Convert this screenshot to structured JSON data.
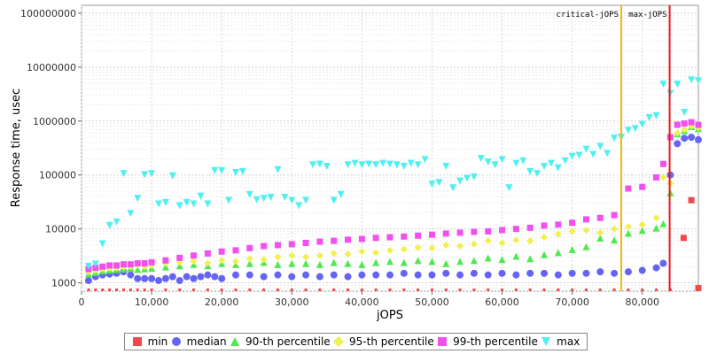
{
  "chart_data": {
    "type": "scatter",
    "xlabel": "jOPS",
    "ylabel": "Response time, usec",
    "xlim": [
      0,
      88000
    ],
    "ylim": [
      700,
      140000000
    ],
    "y_scale": "log",
    "grid": true,
    "x_ticks": [
      0,
      10000,
      20000,
      30000,
      40000,
      50000,
      60000,
      70000,
      80000
    ],
    "x_tick_labels": [
      "0",
      "10,000",
      "20,000",
      "30,000",
      "40,000",
      "50,000",
      "60,000",
      "70,000",
      "80,000"
    ],
    "y_ticks": [
      1000,
      10000,
      100000,
      1000000,
      10000000,
      100000000
    ],
    "y_tick_labels": [
      "1000",
      "10000",
      "100000",
      "1000000",
      "10000000",
      "100000000"
    ],
    "legend_position": "bottom",
    "markers": [
      {
        "label": "critical-jOPS",
        "x": 77000,
        "color": "#f5b800"
      },
      {
        "label": "max-jOPS",
        "x": 83900,
        "color": "#e8191d"
      }
    ],
    "series": [
      {
        "name": "min",
        "color": "#f24848",
        "marker": "square",
        "x": [
          1000,
          2000,
          3000,
          4000,
          5000,
          6000,
          7000,
          8000,
          9000,
          10000,
          12000,
          14000,
          16000,
          18000,
          20000,
          22000,
          24000,
          26000,
          28000,
          30000,
          32000,
          34000,
          36000,
          38000,
          40000,
          42000,
          44000,
          46000,
          48000,
          50000,
          52000,
          54000,
          56000,
          58000,
          60000,
          62000,
          64000,
          66000,
          68000,
          70000,
          72000,
          74000,
          76000,
          78000,
          80000,
          82000,
          84000,
          85900,
          87000,
          88000
        ],
        "y": [
          740,
          740,
          740,
          740,
          740,
          740,
          740,
          740,
          740,
          740,
          740,
          740,
          740,
          740,
          740,
          740,
          740,
          740,
          740,
          740,
          740,
          740,
          740,
          740,
          740,
          740,
          740,
          740,
          740,
          740,
          740,
          740,
          740,
          740,
          740,
          740,
          740,
          740,
          740,
          740,
          740,
          740,
          740,
          740,
          740,
          740,
          740,
          6800,
          34000,
          800
        ]
      },
      {
        "name": "median",
        "color": "#6464f5",
        "marker": "circle",
        "x": [
          1000,
          2000,
          3000,
          4000,
          5000,
          6000,
          7000,
          8000,
          9000,
          10000,
          11000,
          12000,
          13000,
          14000,
          15000,
          16000,
          17000,
          18000,
          19000,
          20000,
          22000,
          24000,
          26000,
          28000,
          30000,
          32000,
          34000,
          36000,
          38000,
          40000,
          42000,
          44000,
          46000,
          48000,
          50000,
          52000,
          54000,
          56000,
          58000,
          60000,
          62000,
          64000,
          66000,
          68000,
          70000,
          72000,
          74000,
          76000,
          78000,
          80000,
          82000,
          83000,
          84000,
          85000,
          86000,
          87000,
          88000
        ],
        "y": [
          1100,
          1300,
          1400,
          1450,
          1500,
          1600,
          1400,
          1200,
          1200,
          1200,
          1100,
          1200,
          1300,
          1100,
          1300,
          1200,
          1300,
          1400,
          1300,
          1200,
          1400,
          1400,
          1300,
          1400,
          1300,
          1400,
          1300,
          1400,
          1300,
          1400,
          1400,
          1400,
          1500,
          1400,
          1400,
          1500,
          1400,
          1500,
          1400,
          1500,
          1400,
          1500,
          1500,
          1400,
          1500,
          1500,
          1600,
          1500,
          1600,
          1700,
          1900,
          2300,
          100000,
          380000,
          480000,
          500000,
          450000
        ]
      },
      {
        "name": "90-th percentile",
        "color": "#50e850",
        "marker": "triangle-up",
        "x": [
          1000,
          2000,
          3000,
          4000,
          5000,
          6000,
          7000,
          8000,
          9000,
          10000,
          12000,
          14000,
          16000,
          18000,
          20000,
          22000,
          24000,
          26000,
          28000,
          30000,
          32000,
          34000,
          36000,
          38000,
          40000,
          42000,
          44000,
          46000,
          48000,
          50000,
          52000,
          54000,
          56000,
          58000,
          60000,
          62000,
          64000,
          66000,
          68000,
          70000,
          72000,
          74000,
          76000,
          78000,
          80000,
          82000,
          83000,
          84000,
          85000,
          86000,
          87000,
          88000
        ],
        "y": [
          1400,
          1500,
          1600,
          1650,
          1700,
          1750,
          1800,
          1700,
          1750,
          1800,
          1900,
          2000,
          2100,
          2000,
          2200,
          2100,
          2200,
          2300,
          2100,
          2200,
          2200,
          2100,
          2300,
          2200,
          2100,
          2300,
          2400,
          2300,
          2500,
          2400,
          2200,
          2400,
          2500,
          2800,
          2600,
          3000,
          2700,
          3200,
          3500,
          4000,
          4500,
          6500,
          6000,
          8000,
          9000,
          10000,
          12000,
          45000,
          560000,
          640000,
          760000,
          700000
        ]
      },
      {
        "name": "95-th percentile",
        "color": "#f0f050",
        "marker": "diamond",
        "x": [
          1000,
          2000,
          3000,
          4000,
          5000,
          6000,
          7000,
          8000,
          9000,
          10000,
          12000,
          14000,
          16000,
          18000,
          20000,
          22000,
          24000,
          26000,
          28000,
          30000,
          32000,
          34000,
          36000,
          38000,
          40000,
          42000,
          44000,
          46000,
          48000,
          50000,
          52000,
          54000,
          56000,
          58000,
          60000,
          62000,
          64000,
          66000,
          68000,
          70000,
          72000,
          74000,
          76000,
          78000,
          80000,
          82000,
          83000,
          84000,
          85000,
          86000,
          87000,
          88000
        ],
        "y": [
          1600,
          1700,
          1800,
          1850,
          1900,
          1950,
          2000,
          2100,
          2000,
          2100,
          2300,
          2400,
          2500,
          2300,
          2600,
          2500,
          2800,
          2700,
          3000,
          3200,
          3000,
          3200,
          3500,
          3400,
          3800,
          3600,
          4000,
          4200,
          4500,
          4400,
          5000,
          4800,
          5200,
          6000,
          5500,
          6200,
          6000,
          7000,
          8000,
          9000,
          9500,
          8500,
          10000,
          11000,
          12000,
          16000,
          90000,
          70000,
          600000,
          700000,
          800000,
          750000
        ]
      },
      {
        "name": "99-th percentile",
        "color": "#f050f0",
        "marker": "square",
        "x": [
          1000,
          2000,
          3000,
          4000,
          5000,
          6000,
          7000,
          8000,
          9000,
          10000,
          12000,
          14000,
          16000,
          18000,
          20000,
          22000,
          24000,
          26000,
          28000,
          30000,
          32000,
          34000,
          36000,
          38000,
          40000,
          42000,
          44000,
          46000,
          48000,
          50000,
          52000,
          54000,
          56000,
          58000,
          60000,
          62000,
          64000,
          66000,
          68000,
          70000,
          72000,
          74000,
          76000,
          78000,
          80000,
          82000,
          83000,
          84000,
          85000,
          86000,
          87000,
          88000
        ],
        "y": [
          1800,
          1900,
          2000,
          2100,
          2100,
          2200,
          2200,
          2300,
          2300,
          2400,
          2600,
          2900,
          3200,
          3500,
          3800,
          4000,
          4400,
          4800,
          5000,
          5200,
          5500,
          5800,
          6000,
          6300,
          6500,
          6800,
          7000,
          7200,
          7500,
          7800,
          8200,
          8500,
          8800,
          9000,
          9500,
          10000,
          10500,
          11500,
          12000,
          13000,
          15000,
          16000,
          18000,
          56000,
          60000,
          90000,
          160000,
          500000,
          850000,
          900000,
          950000,
          850000
        ]
      },
      {
        "name": "max",
        "color": "#50f0f0",
        "marker": "triangle-down",
        "x": [
          1000,
          2000,
          3000,
          4000,
          5000,
          6000,
          7000,
          8000,
          9000,
          10000,
          11000,
          12000,
          13000,
          14000,
          15000,
          16000,
          17000,
          18000,
          19000,
          20000,
          21000,
          22000,
          23000,
          24000,
          25000,
          26000,
          27000,
          28000,
          29000,
          30000,
          31000,
          32000,
          33000,
          34000,
          35000,
          36000,
          37000,
          38000,
          39000,
          40000,
          41000,
          42000,
          43000,
          44000,
          45000,
          46000,
          47000,
          48000,
          49000,
          50000,
          51000,
          52000,
          53000,
          54000,
          55000,
          56000,
          57000,
          58000,
          59000,
          60000,
          61000,
          62000,
          63000,
          64000,
          65000,
          66000,
          67000,
          68000,
          69000,
          70000,
          71000,
          72000,
          73000,
          74000,
          75000,
          76000,
          77000,
          78000,
          79000,
          80000,
          81000,
          82000,
          83000,
          84000,
          85000,
          86000,
          87000,
          88000
        ],
        "y": [
          2100,
          2300,
          5500,
          12000,
          14000,
          110000,
          20000,
          38000,
          105000,
          110000,
          30000,
          32000,
          100000,
          28000,
          32000,
          30000,
          42000,
          30000,
          125000,
          125000,
          35000,
          115000,
          120000,
          45000,
          36000,
          38000,
          40000,
          130000,
          40000,
          35000,
          28000,
          35000,
          160000,
          165000,
          150000,
          35000,
          45000,
          160000,
          170000,
          160000,
          165000,
          160000,
          170000,
          165000,
          160000,
          150000,
          170000,
          160000,
          200000,
          70000,
          75000,
          150000,
          60000,
          80000,
          90000,
          95000,
          210000,
          180000,
          160000,
          200000,
          60000,
          170000,
          190000,
          120000,
          110000,
          150000,
          170000,
          140000,
          190000,
          230000,
          240000,
          310000,
          250000,
          350000,
          260000,
          500000,
          520000,
          700000,
          750000,
          900000,
          1200000,
          1300000,
          5000000,
          3400000,
          5000000,
          1500000,
          6000000,
          5800000
        ]
      }
    ]
  },
  "legend": {
    "items": [
      {
        "label": "min",
        "color": "#f24848",
        "icon": "square"
      },
      {
        "label": "median",
        "color": "#6464f5",
        "icon": "circle"
      },
      {
        "label": "90-th percentile",
        "color": "#50e850",
        "icon": "triangle-up"
      },
      {
        "label": "95-th percentile",
        "color": "#f0f050",
        "icon": "diamond"
      },
      {
        "label": "99-th percentile",
        "color": "#f050f0",
        "icon": "square"
      },
      {
        "label": "max",
        "color": "#50f0f0",
        "icon": "triangle-down"
      }
    ]
  }
}
